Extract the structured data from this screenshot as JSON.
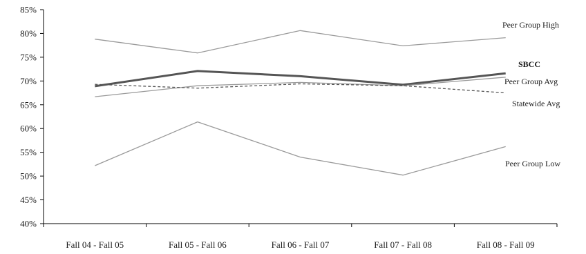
{
  "chart_data": {
    "type": "line",
    "categories": [
      "Fall 04 - Fall 05",
      "Fall 05 - Fall 06",
      "Fall 06 - Fall 07",
      "Fall 07 - Fall 08",
      "Fall 08 - Fall 09"
    ],
    "ylim": [
      40,
      85
    ],
    "yticks": [
      "40%",
      "45%",
      "50%",
      "55%",
      "60%",
      "65%",
      "70%",
      "75%",
      "80%",
      "85%"
    ],
    "grid": false,
    "series": [
      {
        "name": "Peer Group High",
        "values": [
          78.8,
          75.9,
          80.6,
          77.4,
          79.1
        ],
        "color": "#9a9a9a",
        "style": "solid",
        "weight": "thin"
      },
      {
        "name": "SBCC",
        "values": [
          68.9,
          72.1,
          71.0,
          69.2,
          71.6
        ],
        "color": "#555555",
        "style": "solid",
        "weight": "thick"
      },
      {
        "name": "Peer Group Avg",
        "values": [
          66.7,
          69.0,
          69.7,
          69.0,
          70.8
        ],
        "color": "#9a9a9a",
        "style": "solid",
        "weight": "thin"
      },
      {
        "name": "Statewide Avg",
        "values": [
          69.3,
          68.5,
          69.4,
          69.0,
          67.5
        ],
        "color": "#555555",
        "style": "dashed",
        "weight": "thin"
      },
      {
        "name": "Peer Group Low",
        "values": [
          52.2,
          61.4,
          54.0,
          50.2,
          56.2
        ],
        "color": "#9a9a9a",
        "style": "solid",
        "weight": "thin"
      }
    ]
  }
}
